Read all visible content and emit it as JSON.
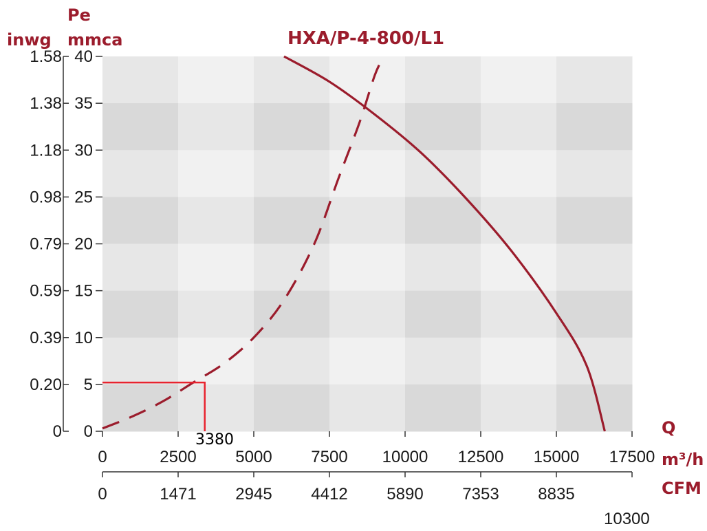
{
  "chart_data": {
    "type": "line",
    "title": "HXA/P-4-800/L1",
    "xlabel": "Q",
    "x_unit_primary": "m³/h",
    "x_unit_secondary": "CFM",
    "y_unit_primary": "mmca",
    "y_label_primary": "Pe",
    "y_unit_secondary": "inwg",
    "xlim": [
      0,
      17500
    ],
    "ylim": [
      0,
      40
    ],
    "x_ticks": [
      0,
      2500,
      5000,
      7500,
      10000,
      12500,
      15000,
      17500
    ],
    "x_ticks_cfm": [
      "0",
      "1471",
      "2945",
      "4412",
      "5890",
      "7353",
      "8835"
    ],
    "y_ticks": [
      "0",
      "5",
      "10",
      "15",
      "20",
      "25",
      "30",
      "35",
      "40"
    ],
    "y_ticks_inwg": [
      "0",
      "0.20",
      "0.39",
      "0.59",
      "0.79",
      "0.98",
      "1.18",
      "1.38",
      "1.58"
    ],
    "extra_cfm_label": "10300",
    "series": [
      {
        "style": "solid",
        "color": "#9b1c2c",
        "points": [
          [
            6000,
            40
          ],
          [
            7500,
            37.3
          ],
          [
            9000,
            33.8
          ],
          [
            10500,
            29.8
          ],
          [
            12000,
            24.9
          ],
          [
            13500,
            19.3
          ],
          [
            15000,
            12.6
          ],
          [
            16000,
            7
          ],
          [
            16600,
            0
          ]
        ]
      },
      {
        "style": "dashed",
        "color": "#9b1c2c",
        "points": [
          [
            0,
            0.3
          ],
          [
            1000,
            1.6
          ],
          [
            2000,
            3.2
          ],
          [
            3000,
            5.2
          ],
          [
            4000,
            7.2
          ],
          [
            5000,
            10
          ],
          [
            6000,
            14
          ],
          [
            7000,
            20
          ],
          [
            7800,
            27
          ],
          [
            8500,
            33
          ],
          [
            9000,
            38
          ],
          [
            9300,
            40
          ]
        ]
      }
    ],
    "operating_point": {
      "x": 3380,
      "y": 5.2,
      "label": "3380",
      "color": "#e8232e"
    },
    "grid": true
  }
}
